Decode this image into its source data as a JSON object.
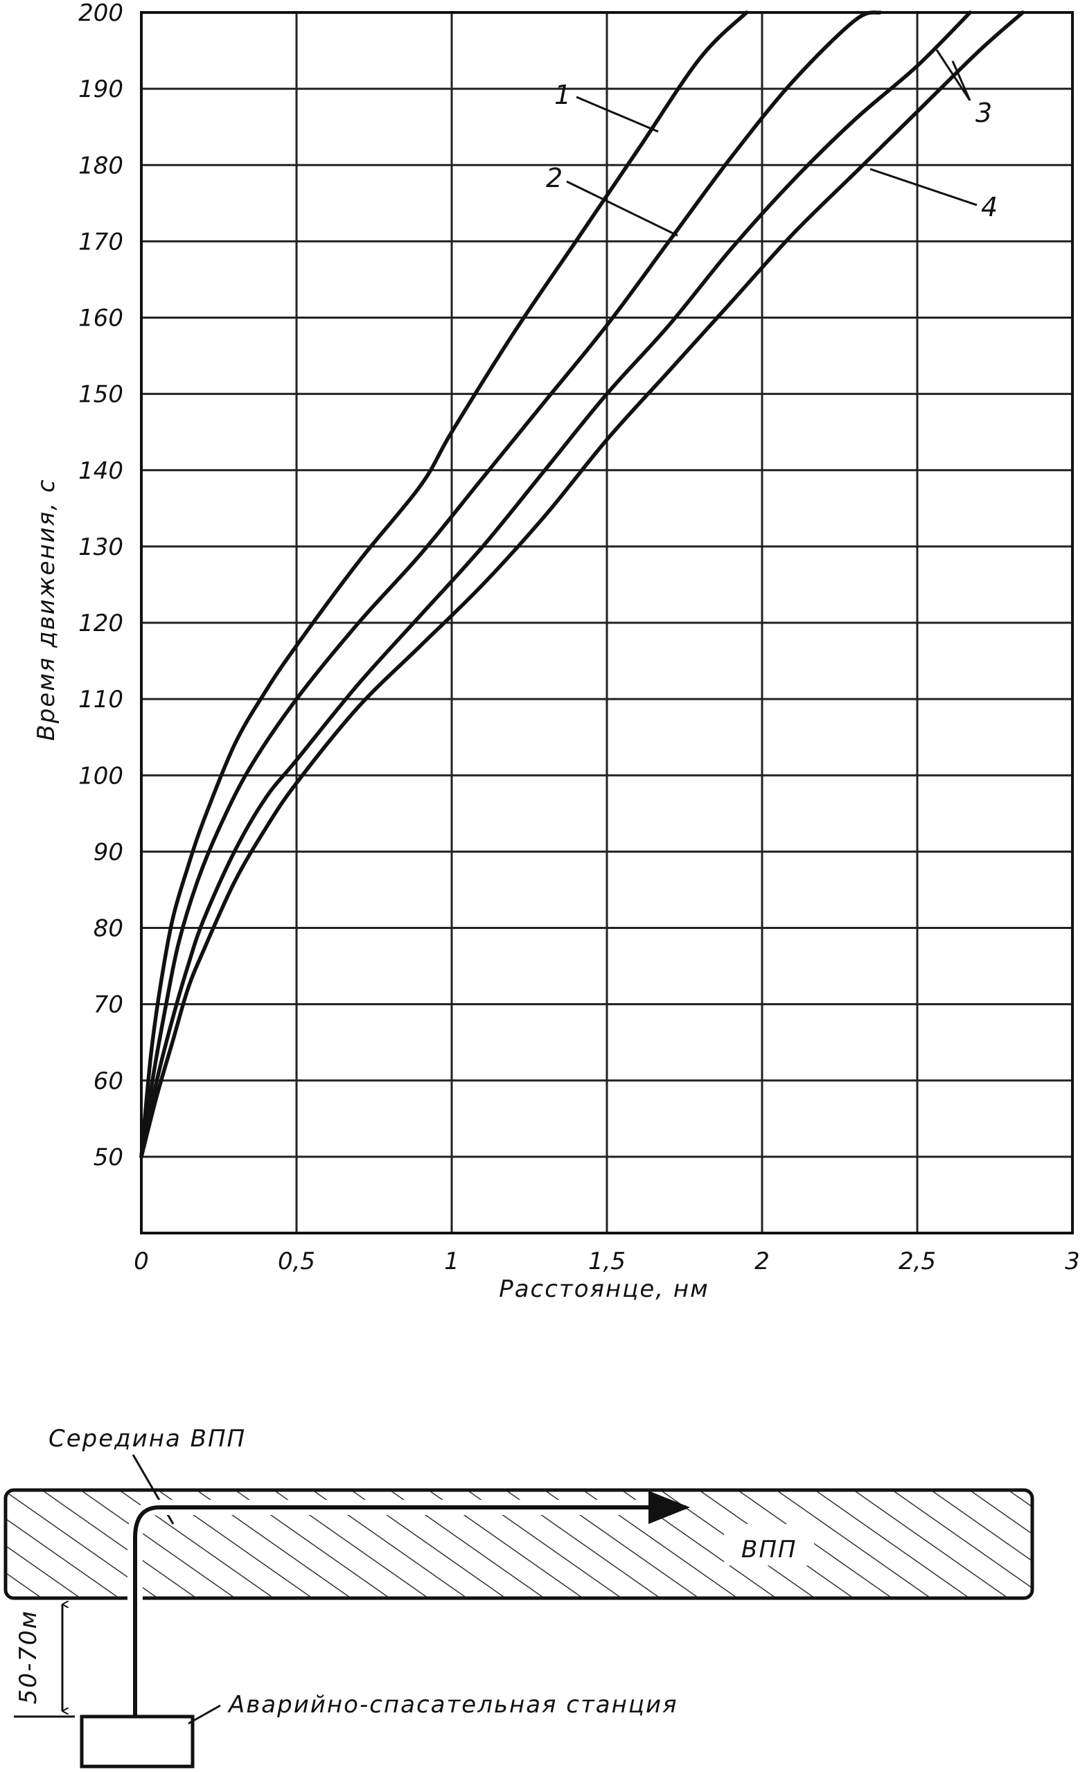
{
  "chart_data": {
    "type": "line",
    "title": "",
    "xlabel": "Расстоянце, нм",
    "ylabel": "Время движения, с",
    "xlim": [
      0,
      3
    ],
    "ylim": [
      40,
      200
    ],
    "grid": true,
    "x_ticks": [
      "0",
      "0,5",
      "1",
      "1,5",
      "2",
      "2,5",
      "3"
    ],
    "y_ticks": [
      "200",
      "190",
      "180",
      "170",
      "160",
      "150",
      "140",
      "130",
      "120",
      "110",
      "100",
      "90",
      "80",
      "70",
      "60",
      "50"
    ],
    "series": [
      {
        "name": "1",
        "x": [
          0,
          0.03,
          0.06,
          0.1,
          0.15,
          0.2,
          0.3,
          0.4,
          0.5,
          0.7,
          0.9,
          1.0,
          1.2,
          1.4,
          1.6,
          1.8,
          1.95
        ],
        "y": [
          50,
          63,
          72,
          81,
          88,
          94,
          104,
          111,
          117,
          128,
          138,
          145,
          158,
          170,
          182,
          194,
          200
        ]
      },
      {
        "name": "2",
        "x": [
          0,
          0.04,
          0.08,
          0.12,
          0.18,
          0.25,
          0.35,
          0.5,
          0.7,
          0.9,
          1.1,
          1.3,
          1.5,
          1.7,
          1.9,
          2.1,
          2.3,
          2.38
        ],
        "y": [
          50,
          61,
          70,
          78,
          86,
          93,
          101,
          110,
          120,
          129,
          139,
          149,
          159,
          170,
          181,
          191,
          199,
          200
        ]
      },
      {
        "name": "3",
        "x": [
          0,
          0.05,
          0.1,
          0.15,
          0.2,
          0.3,
          0.4,
          0.5,
          0.7,
          0.9,
          1.1,
          1.3,
          1.5,
          1.7,
          1.9,
          2.1,
          2.3,
          2.5,
          2.67
        ],
        "y": [
          50,
          60,
          68,
          75,
          81,
          90,
          97,
          102,
          112,
          121,
          130,
          140,
          150,
          159,
          169,
          178,
          186,
          193,
          200
        ]
      },
      {
        "name": "4",
        "x": [
          0,
          0.05,
          0.1,
          0.15,
          0.2,
          0.3,
          0.4,
          0.5,
          0.7,
          0.9,
          1.1,
          1.3,
          1.5,
          1.7,
          1.9,
          2.1,
          2.3,
          2.5,
          2.7,
          2.84
        ],
        "y": [
          50,
          58,
          65,
          72,
          77,
          86,
          93,
          99,
          109,
          117,
          125,
          134,
          144,
          153,
          162,
          171,
          179,
          187,
          195,
          200
        ]
      }
    ]
  },
  "curve_labels": [
    "1",
    "2",
    "3",
    "4"
  ],
  "runway_diagram": {
    "midpoint_label": "Середина ВПП",
    "runway_label": "ВПП",
    "distance_label": "50-70м",
    "station_label": "Аварийно-спасательная станция"
  }
}
